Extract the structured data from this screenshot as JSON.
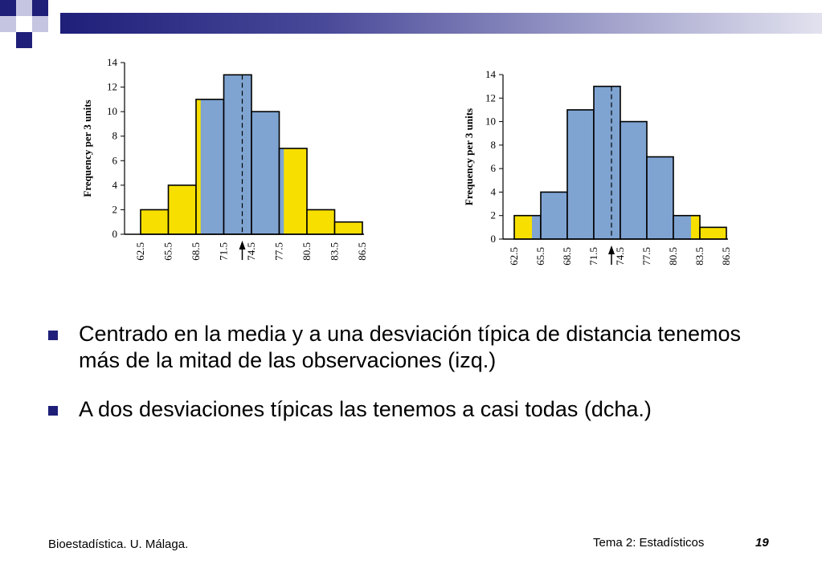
{
  "colors": {
    "brand_dark": "#1f1f7a",
    "brand_mid": "#8f8fc4",
    "bar_blue": "#7fa4d2",
    "bar_yellow": "#f7e000"
  },
  "chart_data": [
    {
      "type": "bar",
      "title": "",
      "xlabel": "",
      "ylabel": "Frequency per 3 units",
      "x_ticks": [
        "62.5",
        "65.5",
        "68.5",
        "71.5",
        "74.5",
        "77.5",
        "80.5",
        "83.5",
        "86.5"
      ],
      "bin_edges": [
        62.5,
        65.5,
        68.5,
        71.5,
        74.5,
        77.5,
        80.5,
        83.5,
        86.5
      ],
      "values": [
        2,
        4,
        11,
        13,
        10,
        7,
        2,
        1
      ],
      "ylim": [
        0,
        14
      ],
      "y_ticks": [
        0,
        2,
        4,
        6,
        8,
        10,
        12,
        14
      ],
      "mean": 73.5,
      "shaded_interval": [
        69.0,
        78.0
      ],
      "grid": false
    },
    {
      "type": "bar",
      "title": "",
      "xlabel": "",
      "ylabel": "Frequency per 3 units",
      "x_ticks": [
        "62.5",
        "65.5",
        "68.5",
        "71.5",
        "74.5",
        "77.5",
        "80.5",
        "83.5",
        "86.5"
      ],
      "bin_edges": [
        62.5,
        65.5,
        68.5,
        71.5,
        74.5,
        77.5,
        80.5,
        83.5,
        86.5
      ],
      "values": [
        2,
        4,
        11,
        13,
        10,
        7,
        2,
        1
      ],
      "ylim": [
        0,
        14
      ],
      "y_ticks": [
        0,
        2,
        4,
        6,
        8,
        10,
        12,
        14
      ],
      "mean": 73.5,
      "shaded_interval": [
        64.5,
        82.5
      ],
      "grid": false
    }
  ],
  "bullets": [
    "Centrado en la media y a una desviación típica de distancia tenemos más de la mitad de las observaciones (izq.)",
    "A dos desviaciones típicas las tenemos a casi todas (dcha.)"
  ],
  "footer": {
    "left": "Bioestadística. U. Málaga.",
    "title": "Tema 2: Estadísticos",
    "page": "19"
  }
}
